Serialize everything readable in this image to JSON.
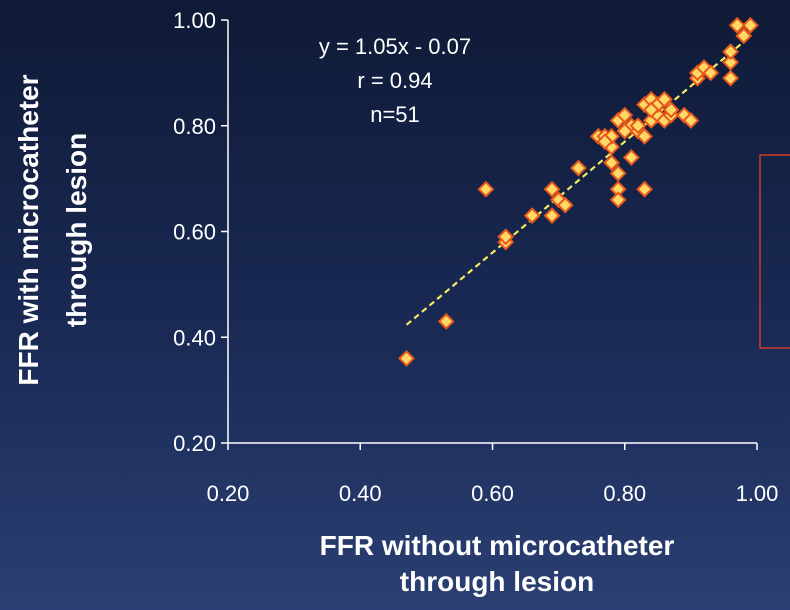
{
  "chart_data": {
    "type": "scatter",
    "title": "",
    "xlabel": [
      "FFR without microcatheter",
      "through lesion"
    ],
    "ylabel": [
      "FFR with microcatheter",
      "through lesion"
    ],
    "xlim": [
      0.2,
      1.0
    ],
    "ylim": [
      0.2,
      1.0
    ],
    "x_ticks": [
      "0.20",
      "0.40",
      "0.60",
      "0.80",
      "1.00"
    ],
    "y_ticks": [
      "0.20",
      "0.40",
      "0.60",
      "0.80",
      "1.00"
    ],
    "grid": false,
    "annotations": [
      "y = 1.05x - 0.07",
      "r = 0.94",
      "n=51"
    ],
    "trendline": {
      "slope": 1.05,
      "intercept": -0.07,
      "x_range": [
        0.47,
        0.99
      ],
      "color": "#f5e663",
      "style": "dashed"
    },
    "marker_color": "#ffd966",
    "marker_edge_color": "#e8581c",
    "points": [
      [
        0.47,
        0.36
      ],
      [
        0.53,
        0.43
      ],
      [
        0.59,
        0.68
      ],
      [
        0.62,
        0.58
      ],
      [
        0.62,
        0.59
      ],
      [
        0.66,
        0.63
      ],
      [
        0.69,
        0.63
      ],
      [
        0.69,
        0.68
      ],
      [
        0.7,
        0.66
      ],
      [
        0.71,
        0.65
      ],
      [
        0.73,
        0.72
      ],
      [
        0.76,
        0.78
      ],
      [
        0.77,
        0.78
      ],
      [
        0.78,
        0.73
      ],
      [
        0.78,
        0.76
      ],
      [
        0.78,
        0.78
      ],
      [
        0.79,
        0.71
      ],
      [
        0.79,
        0.68
      ],
      [
        0.79,
        0.66
      ],
      [
        0.79,
        0.81
      ],
      [
        0.8,
        0.82
      ],
      [
        0.81,
        0.74
      ],
      [
        0.81,
        0.8
      ],
      [
        0.82,
        0.79
      ],
      [
        0.83,
        0.78
      ],
      [
        0.83,
        0.84
      ],
      [
        0.84,
        0.85
      ],
      [
        0.83,
        0.68
      ],
      [
        0.84,
        0.81
      ],
      [
        0.85,
        0.82
      ],
      [
        0.85,
        0.84
      ],
      [
        0.86,
        0.85
      ],
      [
        0.86,
        0.81
      ],
      [
        0.87,
        0.82
      ],
      [
        0.87,
        0.83
      ],
      [
        0.89,
        0.82
      ],
      [
        0.9,
        0.81
      ],
      [
        0.91,
        0.89
      ],
      [
        0.91,
        0.9
      ],
      [
        0.92,
        0.91
      ],
      [
        0.93,
        0.9
      ],
      [
        0.96,
        0.89
      ],
      [
        0.96,
        0.92
      ],
      [
        0.96,
        0.94
      ],
      [
        0.97,
        0.99
      ],
      [
        0.98,
        0.97
      ],
      [
        0.99,
        0.99
      ],
      [
        0.84,
        0.83
      ],
      [
        0.8,
        0.79
      ],
      [
        0.77,
        0.77
      ],
      [
        0.82,
        0.8
      ]
    ],
    "highlight_box_color": "#d03a2a"
  }
}
